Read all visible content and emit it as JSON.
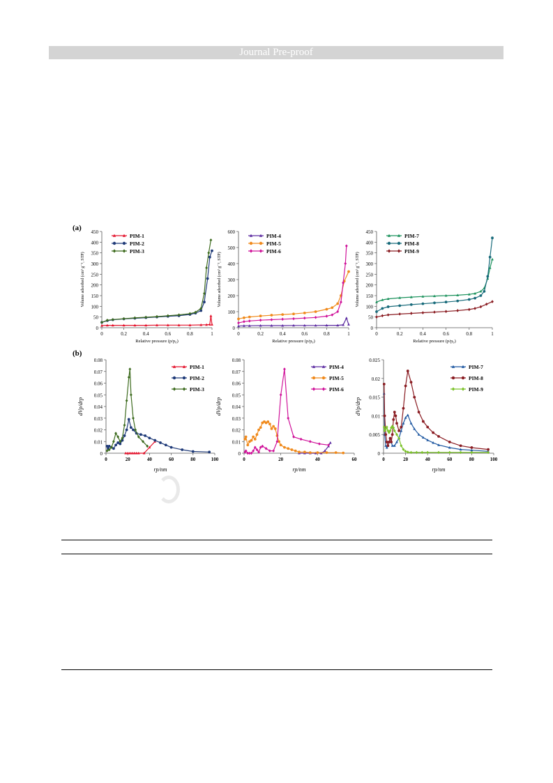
{
  "header": {
    "banner_text": "Journal Pre-proof"
  },
  "figure": {
    "row_labels": [
      "(a)",
      "(b)"
    ],
    "panels_a_ylabel": "Volume adsorbed (cm³ g⁻¹, STP)",
    "panels_a_xlabel": "Relative pressure (p/p₀)",
    "panels_b_ylabel": "dVp/drp",
    "panels_b_xlabel": "rp/nm"
  },
  "colors": {
    "PIM-1": "#e3122b",
    "PIM-2": "#1f3a78",
    "PIM-3": "#3d6b1e",
    "PIM-4": "#5b2aa0",
    "PIM-5": "#f08a1c",
    "PIM-6": "#d0139a",
    "PIM-7": "#18905a",
    "PIM-8": "#176a7a",
    "PIM-9": "#8a1c22",
    "b-PIM-7": "#1c56a0",
    "b-PIM-8": "#8a1c22",
    "b-PIM-9": "#7cc22a"
  },
  "chart_data": [
    {
      "id": "a1",
      "type": "line",
      "xlabel": "Relative pressure (p/p₀)",
      "ylabel": "Volume adsorbed (cm³ g⁻¹, STP)",
      "xlim": [
        0,
        1
      ],
      "ylim": [
        0,
        450
      ],
      "xticks": [
        0,
        0.2,
        0.4,
        0.6,
        0.8,
        1
      ],
      "yticks": [
        0,
        50,
        100,
        150,
        200,
        250,
        300,
        350,
        400,
        450
      ],
      "legend": "top-left",
      "series": [
        {
          "name": "PIM-1",
          "x": [
            0,
            0.05,
            0.1,
            0.2,
            0.3,
            0.4,
            0.5,
            0.6,
            0.7,
            0.8,
            0.9,
            0.95,
            0.98,
            0.99,
            1.0
          ],
          "y": [
            10,
            11,
            11,
            11,
            11,
            11,
            12,
            12,
            12,
            12,
            13,
            14,
            15,
            55,
            15
          ]
        },
        {
          "name": "PIM-2",
          "x": [
            0,
            0.05,
            0.1,
            0.2,
            0.3,
            0.4,
            0.5,
            0.6,
            0.7,
            0.8,
            0.85,
            0.9,
            0.93,
            0.96,
            0.98,
            1.0
          ],
          "y": [
            25,
            33,
            37,
            41,
            44,
            47,
            50,
            53,
            56,
            62,
            68,
            80,
            120,
            230,
            330,
            360
          ]
        },
        {
          "name": "PIM-3",
          "x": [
            0,
            0.05,
            0.1,
            0.2,
            0.3,
            0.4,
            0.5,
            0.6,
            0.7,
            0.8,
            0.85,
            0.9,
            0.93,
            0.95,
            0.97,
            0.99
          ],
          "y": [
            25,
            35,
            38,
            42,
            46,
            49,
            52,
            56,
            60,
            66,
            72,
            90,
            160,
            280,
            350,
            410
          ]
        }
      ]
    },
    {
      "id": "a2",
      "type": "line",
      "xlabel": "Relative pressure (p/p₀)",
      "ylabel": "Volume adsorbed (cm³ g⁻¹, STP)",
      "xlim": [
        0,
        1
      ],
      "ylim": [
        0,
        600
      ],
      "xticks": [
        0,
        0.2,
        0.4,
        0.6,
        0.8,
        1
      ],
      "yticks": [
        0,
        100,
        200,
        300,
        400,
        500,
        600
      ],
      "legend": "top-left",
      "series": [
        {
          "name": "PIM-4",
          "x": [
            0,
            0.05,
            0.1,
            0.2,
            0.3,
            0.4,
            0.5,
            0.6,
            0.7,
            0.8,
            0.9,
            0.95,
            0.98,
            1.0
          ],
          "y": [
            10,
            12,
            12,
            13,
            13,
            13,
            14,
            14,
            14,
            15,
            15,
            18,
            60,
            20
          ]
        },
        {
          "name": "PIM-5",
          "x": [
            0,
            0.05,
            0.1,
            0.2,
            0.3,
            0.4,
            0.5,
            0.6,
            0.7,
            0.8,
            0.85,
            0.9,
            0.93,
            0.96,
            1.0
          ],
          "y": [
            55,
            62,
            67,
            73,
            78,
            82,
            86,
            92,
            100,
            115,
            125,
            150,
            200,
            290,
            350
          ]
        },
        {
          "name": "PIM-6",
          "x": [
            0,
            0.05,
            0.1,
            0.2,
            0.3,
            0.4,
            0.5,
            0.6,
            0.7,
            0.8,
            0.85,
            0.9,
            0.93,
            0.95,
            0.97,
            0.98
          ],
          "y": [
            30,
            38,
            42,
            47,
            50,
            53,
            56,
            60,
            64,
            72,
            80,
            100,
            160,
            280,
            400,
            510
          ]
        }
      ]
    },
    {
      "id": "a3",
      "type": "line",
      "xlabel": "Relative pressure (p/p₀)",
      "ylabel": "Volume adsorbed (cm³ g⁻¹, STP)",
      "xlim": [
        0,
        1
      ],
      "ylim": [
        0,
        450
      ],
      "xticks": [
        0,
        0.2,
        0.4,
        0.6,
        0.8,
        1
      ],
      "yticks": [
        0,
        50,
        100,
        150,
        200,
        250,
        300,
        350,
        400,
        450
      ],
      "legend": "top-left",
      "series": [
        {
          "name": "PIM-7",
          "x": [
            0,
            0.05,
            0.1,
            0.2,
            0.3,
            0.4,
            0.5,
            0.6,
            0.7,
            0.8,
            0.85,
            0.9,
            0.93,
            0.96,
            0.98,
            1.0
          ],
          "y": [
            120,
            130,
            135,
            140,
            143,
            146,
            148,
            150,
            152,
            156,
            160,
            170,
            185,
            230,
            280,
            320
          ]
        },
        {
          "name": "PIM-8",
          "x": [
            0,
            0.05,
            0.1,
            0.2,
            0.3,
            0.4,
            0.5,
            0.6,
            0.7,
            0.8,
            0.85,
            0.9,
            0.93,
            0.96,
            0.98,
            1.0
          ],
          "y": [
            75,
            90,
            98,
            103,
            108,
            112,
            116,
            120,
            125,
            132,
            138,
            150,
            170,
            240,
            330,
            420
          ]
        },
        {
          "name": "PIM-9",
          "x": [
            0,
            0.05,
            0.1,
            0.2,
            0.3,
            0.4,
            0.5,
            0.6,
            0.7,
            0.8,
            0.85,
            0.9,
            0.95,
            1.0
          ],
          "y": [
            50,
            56,
            60,
            64,
            67,
            70,
            73,
            76,
            80,
            85,
            90,
            98,
            110,
            122
          ]
        }
      ]
    },
    {
      "id": "b1",
      "type": "line",
      "xlabel": "rp/nm",
      "ylabel": "dVp/drp",
      "xlim": [
        0,
        100
      ],
      "ylim": [
        0,
        0.08
      ],
      "xticks": [
        0,
        20,
        40,
        60,
        80,
        100
      ],
      "yticks": [
        0,
        0.01,
        0.02,
        0.03,
        0.04,
        0.05,
        0.06,
        0.07,
        0.08
      ],
      "legend": "top-right",
      "series": [
        {
          "name": "PIM-1",
          "x": [
            18,
            20,
            22,
            24,
            26,
            28,
            30,
            35,
            40,
            45
          ],
          "y": [
            0,
            0,
            0,
            0,
            0,
            0,
            0,
            0,
            0.005,
            0.01
          ]
        },
        {
          "name": "PIM-2",
          "x": [
            1,
            2,
            3,
            5,
            7,
            9,
            11,
            13,
            15,
            17,
            19,
            21,
            23,
            25,
            28,
            32,
            36,
            40,
            45,
            50,
            55,
            60,
            70,
            80,
            95
          ],
          "y": [
            0.006,
            0.004,
            0.006,
            0.005,
            0.004,
            0.007,
            0.009,
            0.008,
            0.011,
            0.015,
            0.02,
            0.029,
            0.022,
            0.02,
            0.017,
            0.016,
            0.015,
            0.013,
            0.011,
            0.009,
            0.007,
            0.005,
            0.003,
            0.0015,
            0.001
          ]
        },
        {
          "name": "PIM-3",
          "x": [
            1,
            3,
            5,
            7,
            9,
            11,
            13,
            15,
            17,
            19,
            21,
            22,
            23,
            25,
            27,
            30,
            34,
            38
          ],
          "y": [
            0.002,
            0.003,
            0.005,
            0.01,
            0.017,
            0.014,
            0.01,
            0.013,
            0.024,
            0.045,
            0.065,
            0.072,
            0.05,
            0.03,
            0.02,
            0.014,
            0.01,
            0.006
          ]
        }
      ]
    },
    {
      "id": "b2",
      "type": "line",
      "xlabel": "rp/nm",
      "ylabel": "dVp/drp",
      "xlim": [
        0,
        60
      ],
      "ylim": [
        0,
        0.08
      ],
      "xticks": [
        0,
        20,
        40,
        60
      ],
      "yticks": [
        0,
        0.01,
        0.02,
        0.03,
        0.04,
        0.05,
        0.06,
        0.07,
        0.08
      ],
      "legend": "top-right",
      "series": [
        {
          "name": "PIM-4",
          "x": [
            30,
            33,
            36,
            39,
            42,
            44,
            46,
            47
          ],
          "y": [
            0,
            0,
            0,
            0,
            0,
            0.002,
            0.006,
            0.009
          ]
        },
        {
          "name": "PIM-5",
          "x": [
            0.5,
            1,
            2,
            3,
            4,
            5,
            6,
            7,
            8,
            9,
            10,
            11,
            12,
            13,
            14,
            15,
            16,
            17,
            18,
            19,
            20,
            22,
            24,
            26,
            28,
            30,
            33,
            36,
            40,
            45,
            50,
            54
          ],
          "y": [
            0.012,
            0.014,
            0.007,
            0.01,
            0.011,
            0.014,
            0.012,
            0.016,
            0.02,
            0.022,
            0.026,
            0.027,
            0.026,
            0.027,
            0.025,
            0.021,
            0.023,
            0.021,
            0.015,
            0.01,
            0.007,
            0.005,
            0.004,
            0.003,
            0.002,
            0.001,
            0.001,
            0.0005,
            0.0005,
            0.0005,
            0.0005,
            0.0002
          ]
        },
        {
          "name": "PIM-6",
          "x": [
            0.5,
            1,
            2,
            3,
            4,
            5,
            6,
            7,
            8,
            9,
            10,
            12,
            14,
            16,
            18,
            20,
            22,
            24,
            27,
            31,
            36,
            41,
            46
          ],
          "y": [
            0.001,
            0.002,
            0,
            0,
            0,
            0.002,
            0.005,
            0.003,
            0.001,
            0.005,
            0.006,
            0.004,
            0.002,
            0.002,
            0.01,
            0.05,
            0.072,
            0.03,
            0.014,
            0.012,
            0.01,
            0.008,
            0.007
          ]
        }
      ]
    },
    {
      "id": "b3",
      "type": "line",
      "xlabel": "rp/nm",
      "ylabel": "dVp/drp",
      "xlim": [
        0,
        100
      ],
      "ylim": [
        0,
        0.025
      ],
      "xticks": [
        0,
        20,
        40,
        60,
        80,
        100
      ],
      "yticks": [
        0,
        0.005,
        0.01,
        0.015,
        0.02,
        0.025
      ],
      "legend": "top-right",
      "series": [
        {
          "name": "PIM-7",
          "x": [
            0.5,
            1,
            2,
            3,
            4,
            5,
            6,
            7,
            8,
            10,
            12,
            14,
            16,
            18,
            20,
            22,
            25,
            28,
            32,
            36,
            40,
            45,
            50,
            60,
            70,
            80,
            95
          ],
          "y": [
            0.016,
            0.005,
            0.002,
            0.0015,
            0.002,
            0.003,
            0.004,
            0.003,
            0.002,
            0.002,
            0.003,
            0.004,
            0.006,
            0.008,
            0.0095,
            0.0102,
            0.008,
            0.0065,
            0.005,
            0.0042,
            0.0035,
            0.0028,
            0.0022,
            0.0015,
            0.001,
            0.0008,
            0.0005
          ]
        },
        {
          "name": "PIM-8",
          "x": [
            0.5,
            1,
            2,
            3,
            4,
            5,
            6,
            7,
            8,
            9,
            10,
            11,
            12,
            14,
            16,
            18,
            20,
            22,
            25,
            28,
            32,
            36,
            40,
            45,
            50,
            60,
            70,
            80,
            95
          ],
          "y": [
            0.0185,
            0.01,
            0.005,
            0.003,
            0.002,
            0.003,
            0.004,
            0.003,
            0.005,
            0.009,
            0.011,
            0.01,
            0.008,
            0.006,
            0.007,
            0.012,
            0.018,
            0.022,
            0.019,
            0.015,
            0.011,
            0.0085,
            0.007,
            0.0055,
            0.0045,
            0.003,
            0.002,
            0.0015,
            0.001
          ]
        },
        {
          "name": "PIM-9",
          "x": [
            0.5,
            1,
            2,
            3,
            4,
            5,
            6,
            7,
            8,
            9,
            10,
            12,
            14,
            16,
            18,
            20,
            22,
            25,
            30,
            35,
            40,
            50,
            60,
            70,
            80,
            95
          ],
          "y": [
            0.007,
            0.006,
            0.0065,
            0.007,
            0.006,
            0.0055,
            0.006,
            0.0068,
            0.0072,
            0.0068,
            0.006,
            0.005,
            0.004,
            0.002,
            0.001,
            0.0005,
            0.0003,
            0.0002,
            0.0002,
            0.0002,
            0.0002,
            0.0002,
            0.0002,
            0.0002,
            0.0002,
            0.0002
          ]
        }
      ]
    }
  ]
}
